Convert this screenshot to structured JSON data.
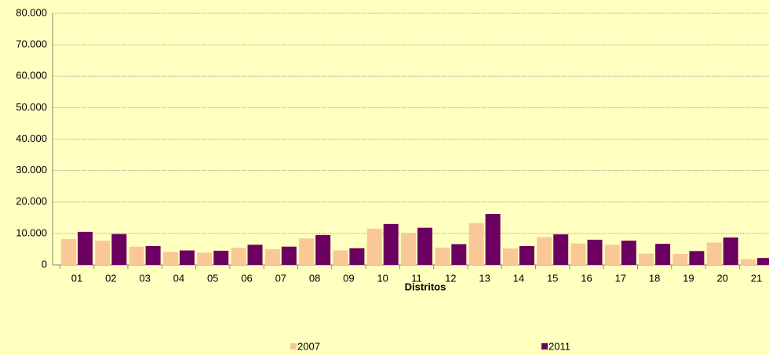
{
  "chart_data": {
    "type": "bar",
    "x_label": "Distritos",
    "categories": [
      "01",
      "02",
      "03",
      "04",
      "05",
      "06",
      "07",
      "08",
      "09",
      "10",
      "11",
      "12",
      "13",
      "14",
      "15",
      "16",
      "17",
      "18",
      "19",
      "20",
      "21"
    ],
    "series": [
      {
        "name": "2007",
        "color": "#fac896",
        "values": [
          8200,
          7700,
          5800,
          4100,
          3900,
          5400,
          5000,
          8400,
          4600,
          11500,
          10200,
          5500,
          13300,
          5200,
          8800,
          6800,
          6400,
          3600,
          3500,
          7100,
          1800
        ]
      },
      {
        "name": "2011",
        "color": "#6b0060",
        "values": [
          10500,
          9800,
          6000,
          4600,
          4500,
          6400,
          5800,
          9500,
          5300,
          13000,
          11800,
          6600,
          16200,
          6000,
          9700,
          8000,
          7700,
          6700,
          4400,
          8700,
          2200
        ]
      }
    ],
    "ylim": [
      0,
      80000
    ],
    "yticks": [
      {
        "value": 0,
        "label": "0"
      },
      {
        "value": 10000,
        "label": "10.000"
      },
      {
        "value": 20000,
        "label": "20.000"
      },
      {
        "value": 30000,
        "label": "30.000"
      },
      {
        "value": 40000,
        "label": "40.000"
      },
      {
        "value": 50000,
        "label": "50.000"
      },
      {
        "value": 60000,
        "label": "60.000"
      },
      {
        "value": 70000,
        "label": "70.000"
      },
      {
        "value": 80000,
        "label": "80.000"
      }
    ],
    "grid": true,
    "legend": "bottom"
  }
}
